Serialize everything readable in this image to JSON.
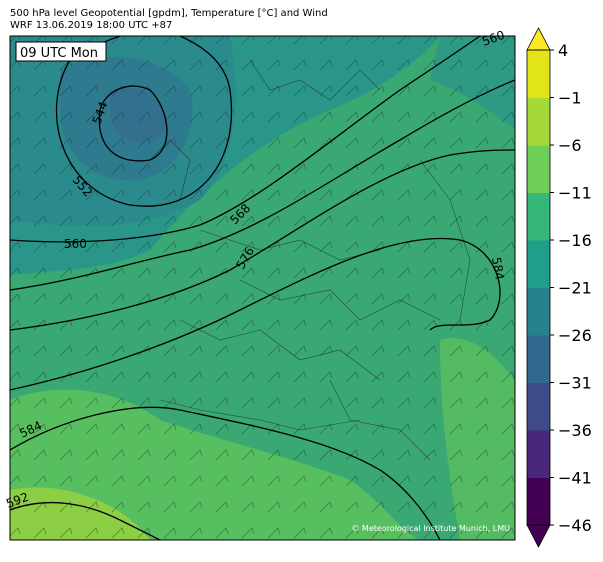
{
  "header": {
    "title": "500 hPa level Geopotential [gpdm], Temperature [°C] and Wind",
    "subtitle": "WRF 13.06.2019 18:00 UTC +87"
  },
  "map": {
    "time_label": "09 UTC Mon",
    "contour_labels": [
      560,
      544,
      552,
      560,
      568,
      576,
      584,
      584,
      592
    ],
    "credit": "© Meteorological Institute Munich, LMU"
  },
  "colorbar": {
    "lim": [
      -46,
      4
    ],
    "ticks": [
      4,
      {
        "value": -1,
        "label": "−1"
      },
      {
        "value": -6,
        "label": "−6"
      },
      {
        "value": -11,
        "label": "−11"
      },
      {
        "value": -16,
        "label": "−16"
      },
      {
        "value": -21,
        "label": "−21"
      },
      {
        "value": -26,
        "label": "−26"
      },
      {
        "value": -31,
        "label": "−31"
      },
      {
        "value": -36,
        "label": "−36"
      },
      {
        "value": -41,
        "label": "−41"
      },
      {
        "value": -46,
        "label": "−46"
      }
    ],
    "colors": [
      "#440154",
      "#482878",
      "#3e4a89",
      "#31688e",
      "#26828e",
      "#1f9e89",
      "#35b779",
      "#6ece58",
      "#a5d93a",
      "#e2e41a"
    ],
    "over_color": "#fde725",
    "under_color": "#440154"
  }
}
